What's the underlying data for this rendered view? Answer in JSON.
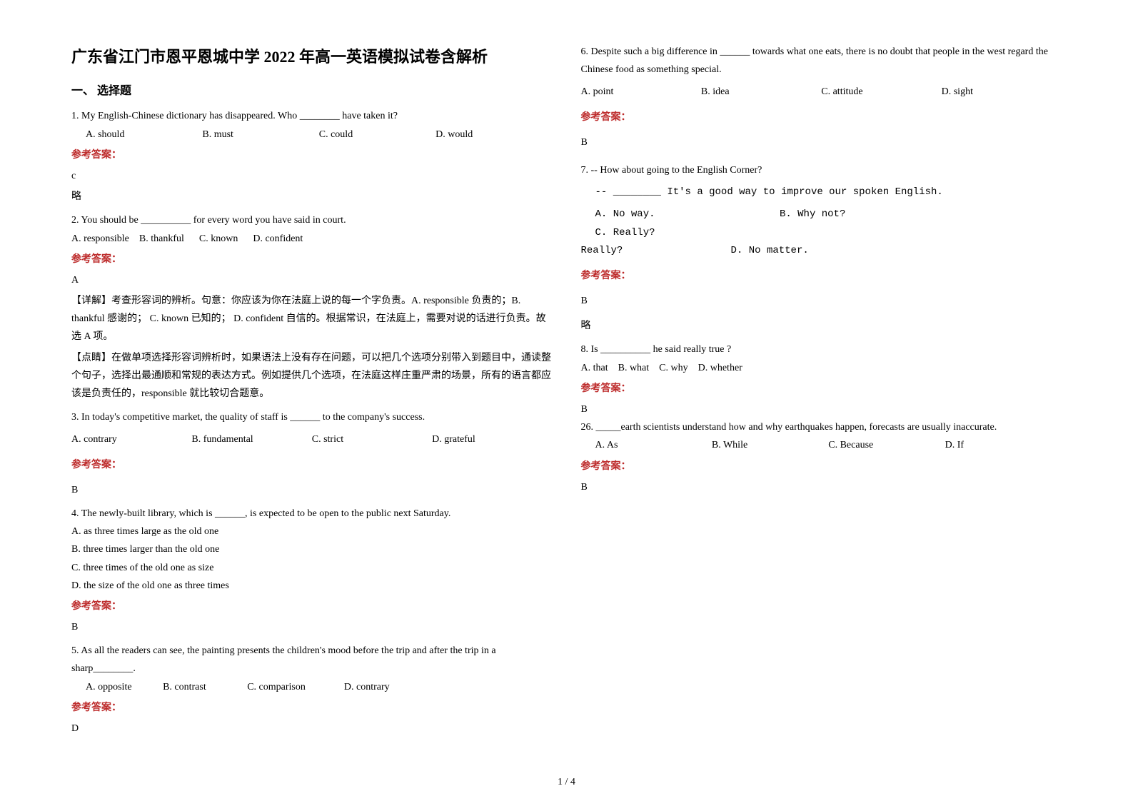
{
  "title": "广东省江门市恩平恩城中学 2022 年高一英语模拟试卷含解析",
  "section1": "一、 选择题",
  "ans_label": "参考答案：",
  "pager": "1 / 4",
  "q1": {
    "stem": "1. My English-Chinese dictionary has disappeared. Who ________ have taken it?",
    "a": "A. should",
    "b": "B. must",
    "c": "C. could",
    "d": "D. would",
    "ans": "c",
    "extra": "略"
  },
  "q2": {
    "stem": "2. You should be __________ for every word you have said in court.",
    "a": "A. responsible",
    "b": "B. thankful",
    "c": "C. known",
    "d": "D. confident",
    "ans": "A",
    "expl1": "【详解】考查形容词的辨析。句意：你应该为你在法庭上说的每一个字负责。A. responsible 负责的；B. thankful 感谢的； C. known 已知的； D. confident 自信的。根据常识，在法庭上，需要对说的话进行负责。故选 A 项。",
    "expl2": "【点睛】在做单项选择形容词辨析时，如果语法上没有存在问题，可以把几个选项分别带入到题目中，通读整个句子，选择出最通顺和常规的表达方式。例如提供几个选项，在法庭这样庄重严肃的场景，所有的语言都应该是负责任的，responsible 就比较切合题意。"
  },
  "q3": {
    "stem": "3. In today's competitive market, the quality of staff is ______ to the company's success.",
    "a": "A. contrary",
    "b": "B. fundamental",
    "c": "C. strict",
    "d": "D. grateful",
    "ans": "B"
  },
  "q4": {
    "stem": "4. The newly-built library, which is ______, is expected to be open to the public next Saturday.",
    "a": "A. as three times large as the old one",
    "b": "B. three times larger than the old one",
    "c": "C. three times of the old one as size",
    "d": "D. the size of the old one as three times",
    "ans": "B"
  },
  "q5": {
    "stem": "5. As all the readers can see, the painting presents the children's mood before the trip and after the trip in a sharp________.",
    "a": "A. opposite",
    "b": "B. contrast",
    "c": "C. comparison",
    "d": "D. contrary",
    "ans": "D"
  },
  "q6": {
    "stem": "6. Despite such a big difference in ______ towards what one eats, there is no doubt that people in the west regard the Chinese food as something special.",
    "a": "A. point",
    "b": "B. idea",
    "c": "C. attitude",
    "d": "D. sight",
    "ans": "B"
  },
  "q7": {
    "stem1": "7. -- How about going to the English Corner?",
    "stem2": "-- ________ It's a good way to improve our spoken English.",
    "a": "A.  No way.",
    "b": "B.  Why not?",
    "c": "C.  Really?",
    "d": "D.  No matter.",
    "ans": "B",
    "extra": "略"
  },
  "q8": {
    "stem": "8. Is __________ he said really true ?",
    "a": "A. that",
    "b": "B. what",
    "c": "C. why",
    "d": "D. whether",
    "ans": "B"
  },
  "q26": {
    "stem": "26. _____earth scientists understand how and why earthquakes happen, forecasts are usually inaccurate.",
    "a": "A. As",
    "b": "B. While",
    "c": "C. Because",
    "d": "D. If",
    "ans": "B"
  }
}
